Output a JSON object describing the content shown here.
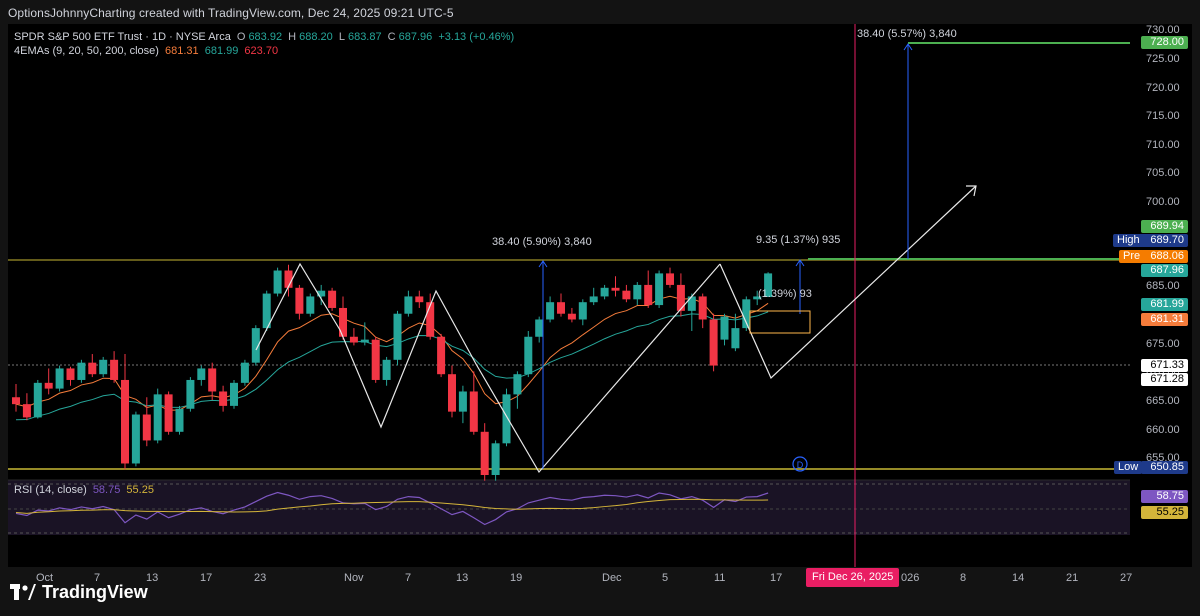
{
  "attribution": "OptionsJohnnyCharting created with TradingView.com, Dec 24, 2025 09:21 UTC-5",
  "legend": {
    "symbol": "SPDR S&P 500 ETF Trust · 1D · NYSE Arca",
    "o_label": "O",
    "o": "683.92",
    "h_label": "H",
    "h": "688.20",
    "l_label": "L",
    "l": "683.87",
    "c_label": "C",
    "c": "687.96",
    "change": "+3.13 (+0.46%)",
    "ema_label": "4EMAs (9, 20, 50, 200, close)",
    "ema1": "681.31",
    "ema2": "681.99",
    "ema3": "623.70"
  },
  "price_axis": [
    "730.00",
    "725.00",
    "720.00",
    "715.00",
    "710.00",
    "705.00",
    "700.00",
    "685.00",
    "675.00",
    "670.00",
    "665.00",
    "660.00",
    "655.00"
  ],
  "price_tags": {
    "target": "728.00",
    "p1": "689.94",
    "high_label": "High",
    "high": "689.70",
    "pre_label": "Pre",
    "pre": "688.06",
    "last": "687.96",
    "ema2": "681.99",
    "ema1": "681.31",
    "d1": "671.33",
    "d2": "671.28",
    "low_label": "Low",
    "low": "650.85"
  },
  "rsi": {
    "label": "RSI (14, close)",
    "v1": "58.75",
    "v2": "55.25"
  },
  "measures": {
    "left": "38.40 (5.90%) 3,840",
    "top": "38.40 (5.57%) 3,840",
    "mid": "9.35 (1.37%) 935",
    "inner": "(1.39%) 93"
  },
  "event_marker": "D",
  "date_axis": [
    "Oct",
    "7",
    "13",
    "17",
    "23",
    "Nov",
    "7",
    "13",
    "19",
    "Dec",
    "5",
    "11",
    "17",
    "026",
    "8",
    "14",
    "21",
    "27"
  ],
  "crosshair_date": "Fri Dec 26, 2025",
  "brand": "TradingView",
  "colors": {
    "up": "#26a69a",
    "down": "#f23645",
    "target": "#4caf50",
    "ema_orange": "#f57c3b",
    "ema_teal": "#26a69a",
    "rsi": "#7e57c2"
  }
}
